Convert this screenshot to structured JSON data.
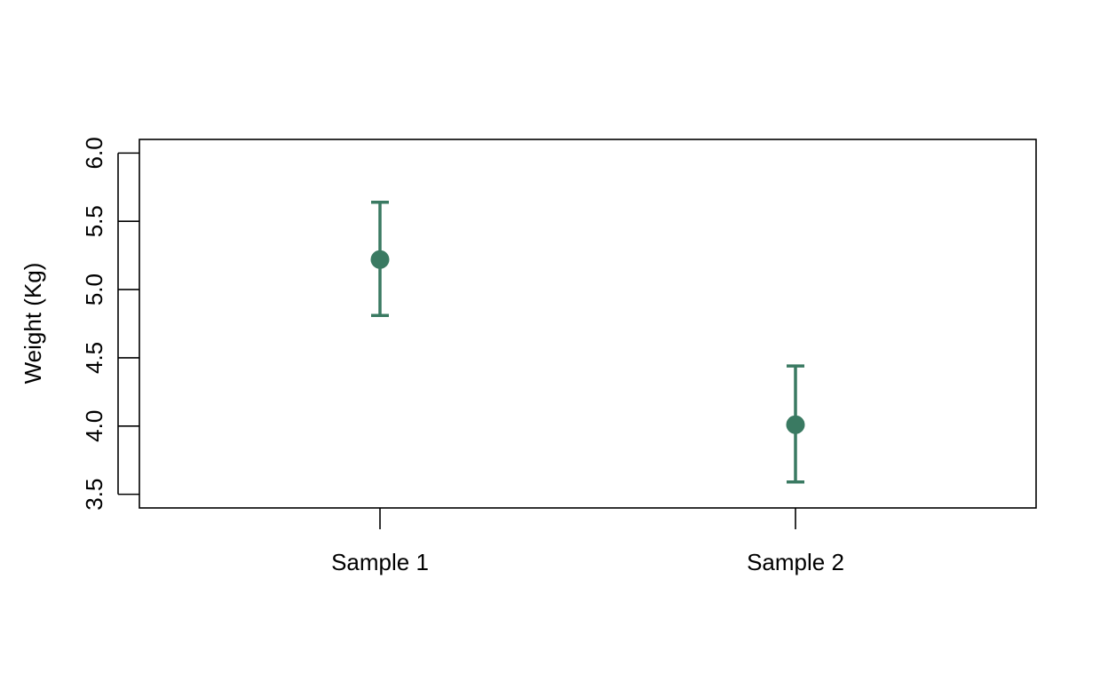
{
  "chart_data": {
    "type": "scatter",
    "title": "",
    "xlabel": "",
    "ylabel": "Weight (Kg)",
    "categories": [
      "Sample 1",
      "Sample 2"
    ],
    "means": [
      5.22,
      4.01
    ],
    "error_low": [
      4.81,
      3.59
    ],
    "error_high": [
      5.64,
      4.44
    ],
    "ylim": [
      3.4,
      6.1
    ],
    "yticks": [
      "3.5",
      "4.0",
      "4.5",
      "5.0",
      "5.5",
      "6.0"
    ],
    "grid": false,
    "legend": "none",
    "color": "#3a7a62"
  }
}
